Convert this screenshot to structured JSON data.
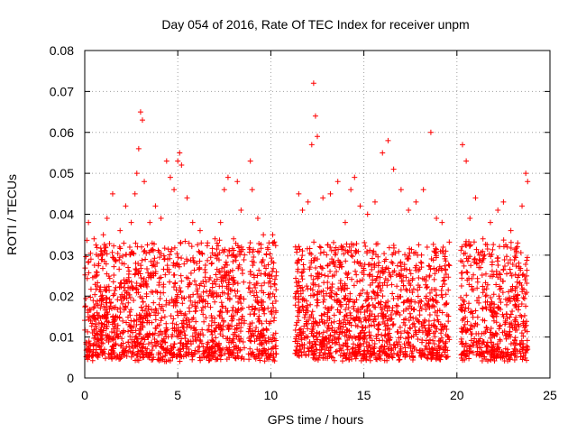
{
  "chart_data": {
    "type": "scatter",
    "title": "Day 054 of 2016, Rate Of TEC Index for receiver unpm",
    "xlabel": "GPS time / hours",
    "ylabel": "ROTI / TECUs",
    "xlim": [
      0,
      25
    ],
    "ylim": [
      0,
      0.08
    ],
    "x_ticks": [
      0,
      5,
      10,
      15,
      20,
      25
    ],
    "x_tick_labels": [
      "0",
      "5",
      "10",
      "15",
      "20",
      "25"
    ],
    "y_ticks": [
      0,
      0.01,
      0.02,
      0.03,
      0.04,
      0.05,
      0.06,
      0.07,
      0.08
    ],
    "y_tick_labels": [
      "0",
      "0.01",
      "0.02",
      "0.03",
      "0.04",
      "0.05",
      "0.06",
      "0.07",
      "0.08"
    ],
    "grid": true,
    "marker": "+",
    "color": "#ff0000",
    "data_segments": [
      {
        "x_start": 0.0,
        "x_end": 7.5
      },
      {
        "x_start": 7.5,
        "x_end": 8.6
      },
      {
        "x_start": 8.8,
        "x_end": 10.3
      },
      {
        "x_start": 11.3,
        "x_end": 19.6
      },
      {
        "x_start": 20.2,
        "x_end": 23.8
      }
    ],
    "points": [
      [
        0.2,
        0.038
      ],
      [
        0.5,
        0.034
      ],
      [
        0.9,
        0.031
      ],
      [
        1.0,
        0.035
      ],
      [
        1.2,
        0.039
      ],
      [
        1.5,
        0.045
      ],
      [
        1.9,
        0.036
      ],
      [
        2.2,
        0.042
      ],
      [
        2.5,
        0.038
      ],
      [
        2.7,
        0.045
      ],
      [
        2.8,
        0.05
      ],
      [
        2.9,
        0.056
      ],
      [
        3.0,
        0.065
      ],
      [
        3.1,
        0.063
      ],
      [
        3.2,
        0.048
      ],
      [
        3.5,
        0.038
      ],
      [
        3.8,
        0.042
      ],
      [
        4.1,
        0.039
      ],
      [
        4.4,
        0.053
      ],
      [
        4.6,
        0.049
      ],
      [
        4.8,
        0.046
      ],
      [
        5.0,
        0.053
      ],
      [
        5.1,
        0.055
      ],
      [
        5.2,
        0.052
      ],
      [
        5.5,
        0.044
      ],
      [
        5.8,
        0.038
      ],
      [
        6.2,
        0.036
      ],
      [
        6.6,
        0.033
      ],
      [
        7.0,
        0.034
      ],
      [
        7.3,
        0.038
      ],
      [
        7.5,
        0.046
      ],
      [
        7.7,
        0.049
      ],
      [
        8.0,
        0.034
      ],
      [
        8.2,
        0.048
      ],
      [
        8.4,
        0.041
      ],
      [
        8.9,
        0.053
      ],
      [
        9.0,
        0.046
      ],
      [
        9.3,
        0.039
      ],
      [
        9.6,
        0.035
      ],
      [
        9.9,
        0.033
      ],
      [
        10.1,
        0.035
      ],
      [
        11.5,
        0.045
      ],
      [
        11.7,
        0.041
      ],
      [
        12.0,
        0.043
      ],
      [
        12.2,
        0.057
      ],
      [
        12.3,
        0.072
      ],
      [
        12.4,
        0.064
      ],
      [
        12.5,
        0.059
      ],
      [
        12.8,
        0.044
      ],
      [
        13.2,
        0.045
      ],
      [
        13.6,
        0.048
      ],
      [
        14.0,
        0.038
      ],
      [
        14.3,
        0.046
      ],
      [
        14.5,
        0.049
      ],
      [
        14.8,
        0.042
      ],
      [
        15.2,
        0.04
      ],
      [
        15.6,
        0.043
      ],
      [
        16.0,
        0.055
      ],
      [
        16.3,
        0.058
      ],
      [
        16.6,
        0.051
      ],
      [
        17.0,
        0.046
      ],
      [
        17.4,
        0.041
      ],
      [
        17.8,
        0.043
      ],
      [
        18.2,
        0.046
      ],
      [
        18.6,
        0.06
      ],
      [
        18.9,
        0.039
      ],
      [
        19.2,
        0.038
      ],
      [
        19.4,
        0.031
      ],
      [
        20.3,
        0.057
      ],
      [
        20.5,
        0.053
      ],
      [
        20.7,
        0.039
      ],
      [
        21.0,
        0.044
      ],
      [
        21.4,
        0.034
      ],
      [
        21.8,
        0.038
      ],
      [
        22.2,
        0.041
      ],
      [
        22.5,
        0.043
      ],
      [
        22.9,
        0.036
      ],
      [
        23.2,
        0.031
      ],
      [
        23.5,
        0.042
      ],
      [
        23.7,
        0.05
      ],
      [
        23.8,
        0.048
      ]
    ]
  }
}
